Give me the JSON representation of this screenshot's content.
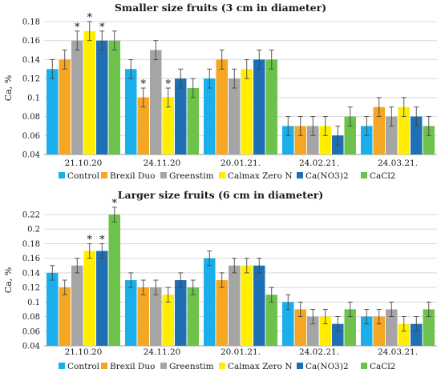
{
  "chart_data": [
    {
      "type": "bar",
      "title": "Smaller size fruits (3 cm in diameter)",
      "ylabel": "Ca, %",
      "xlabel": "",
      "ylim": [
        0.04,
        0.18
      ],
      "yticks": [
        "0.04",
        "0.06",
        "0.08",
        "0.1",
        "0.12",
        "0.14",
        "0.16",
        "0.18"
      ],
      "grid": true,
      "legend": "bottom",
      "categories": [
        "21.10.20",
        "24.11.20",
        "20.01.21.",
        "24.02.21.",
        "24.03.21."
      ],
      "series": [
        {
          "name": "Control",
          "color": "#1aaeea",
          "values": [
            0.13,
            0.13,
            0.12,
            0.07,
            0.07
          ],
          "errors": [
            0.01,
            0.01,
            0.01,
            0.01,
            0.01
          ],
          "stars": [
            false,
            false,
            false,
            false,
            false
          ]
        },
        {
          "name": "Brexil Duo",
          "color": "#f5a623",
          "values": [
            0.14,
            0.1,
            0.14,
            0.07,
            0.09
          ],
          "errors": [
            0.01,
            0.01,
            0.01,
            0.01,
            0.01
          ],
          "stars": [
            false,
            true,
            false,
            false,
            false
          ]
        },
        {
          "name": "Greenstim",
          "color": "#a5a5a5",
          "values": [
            0.16,
            0.15,
            0.12,
            0.07,
            0.08
          ],
          "errors": [
            0.01,
            0.01,
            0.01,
            0.01,
            0.01
          ],
          "stars": [
            true,
            false,
            false,
            false,
            false
          ]
        },
        {
          "name": "Calmax Zero N",
          "color": "#ffee00",
          "values": [
            0.17,
            0.1,
            0.13,
            0.07,
            0.09
          ],
          "errors": [
            0.01,
            0.01,
            0.01,
            0.01,
            0.01
          ],
          "stars": [
            true,
            true,
            false,
            false,
            false
          ]
        },
        {
          "name": "Ca(NO3)2",
          "color": "#1f6fb4",
          "values": [
            0.16,
            0.12,
            0.14,
            0.06,
            0.08
          ],
          "errors": [
            0.01,
            0.01,
            0.01,
            0.01,
            0.01
          ],
          "stars": [
            true,
            false,
            false,
            false,
            false
          ]
        },
        {
          "name": "CaCl2",
          "color": "#6cc24a",
          "values": [
            0.16,
            0.11,
            0.14,
            0.08,
            0.07
          ],
          "errors": [
            0.01,
            0.01,
            0.01,
            0.01,
            0.01
          ],
          "stars": [
            false,
            false,
            false,
            false,
            false
          ]
        }
      ]
    },
    {
      "type": "bar",
      "title": "Larger size fruits (6 cm in diameter)",
      "ylabel": "Ca, %",
      "xlabel": "",
      "ylim": [
        0.04,
        0.22
      ],
      "yticks": [
        "0.04",
        "0.06",
        "0.08",
        "0.1",
        "0.12",
        "0.14",
        "0.16",
        "0.18",
        "0.2",
        "0.22"
      ],
      "grid": true,
      "legend": "bottom",
      "categories": [
        "21.10.20",
        "24.11.20",
        "20.01.21.",
        "24.02.21.",
        "24.03.21."
      ],
      "series": [
        {
          "name": "Control",
          "color": "#1aaeea",
          "values": [
            0.14,
            0.13,
            0.16,
            0.1,
            0.08
          ],
          "errors": [
            0.01,
            0.01,
            0.01,
            0.01,
            0.01
          ],
          "stars": [
            false,
            false,
            false,
            false,
            false
          ]
        },
        {
          "name": "Brexil Duo",
          "color": "#f5a623",
          "values": [
            0.12,
            0.12,
            0.13,
            0.09,
            0.08
          ],
          "errors": [
            0.01,
            0.01,
            0.01,
            0.01,
            0.01
          ],
          "stars": [
            false,
            false,
            false,
            false,
            false
          ]
        },
        {
          "name": "Greenstim",
          "color": "#a5a5a5",
          "values": [
            0.15,
            0.12,
            0.15,
            0.08,
            0.09
          ],
          "errors": [
            0.01,
            0.01,
            0.01,
            0.01,
            0.01
          ],
          "stars": [
            false,
            false,
            false,
            false,
            false
          ]
        },
        {
          "name": "Calmax Zero N",
          "color": "#ffee00",
          "values": [
            0.17,
            0.11,
            0.15,
            0.08,
            0.07
          ],
          "errors": [
            0.01,
            0.01,
            0.01,
            0.01,
            0.01
          ],
          "stars": [
            true,
            false,
            false,
            false,
            false
          ]
        },
        {
          "name": "Ca(NO3)2",
          "color": "#1f6fb4",
          "values": [
            0.17,
            0.13,
            0.15,
            0.07,
            0.07
          ],
          "errors": [
            0.01,
            0.01,
            0.01,
            0.01,
            0.01
          ],
          "stars": [
            true,
            false,
            false,
            false,
            false
          ]
        },
        {
          "name": "CaCl2",
          "color": "#6cc24a",
          "values": [
            0.22,
            0.12,
            0.11,
            0.09,
            0.09
          ],
          "errors": [
            0.01,
            0.01,
            0.01,
            0.01,
            0.01
          ],
          "stars": [
            true,
            false,
            false,
            false,
            false
          ]
        }
      ]
    }
  ]
}
